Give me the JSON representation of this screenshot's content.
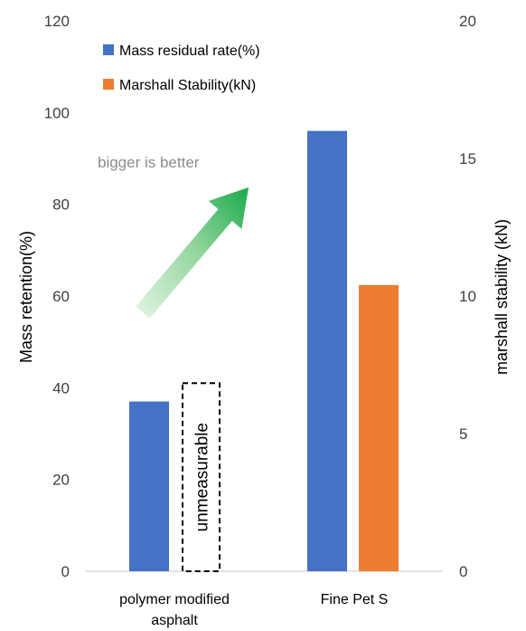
{
  "chart_data": {
    "type": "bar",
    "categories": [
      [
        "polymer modified",
        "asphalt"
      ],
      [
        "Fine Pet S"
      ]
    ],
    "series": [
      {
        "name": "Mass residual rate(%)",
        "axis": "left",
        "color": "#4472c4",
        "values": [
          37,
          96
        ]
      },
      {
        "name": "Marshall Stability(kN)",
        "axis": "right",
        "color": "#ed7d31",
        "values": [
          null,
          10.4
        ]
      }
    ],
    "left_axis": {
      "label": "Mass retention(%)",
      "ylim": [
        0,
        120
      ],
      "ticks": [
        0,
        20,
        40,
        60,
        80,
        100,
        120
      ]
    },
    "right_axis": {
      "label": "marshall stability (kN)",
      "ylim": [
        0,
        20
      ],
      "ticks": [
        0,
        5,
        10,
        15,
        20
      ]
    },
    "legend_position": "top-left",
    "grid": false,
    "annotations": {
      "arrow_text": "bigger is better",
      "arrow_color": "#1aaa4a",
      "unmeasurable_text": "unmeasurable",
      "unmeasurable_box_height": 41
    }
  }
}
